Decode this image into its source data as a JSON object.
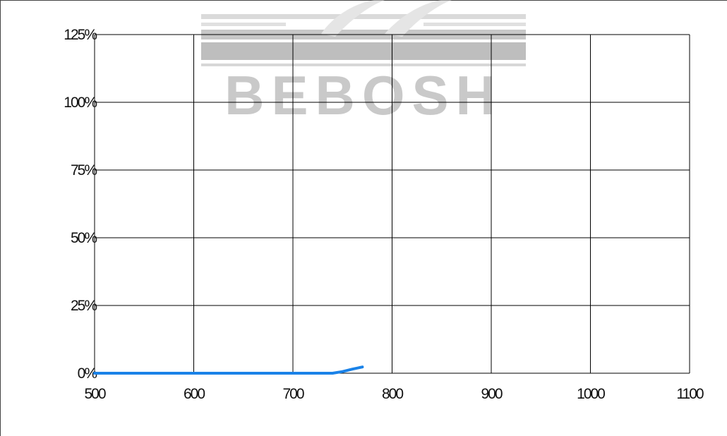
{
  "chart_data": {
    "type": "line",
    "title": "",
    "xlabel": "",
    "ylabel": "",
    "xlim": [
      500,
      1100
    ],
    "ylim": [
      0,
      125
    ],
    "x_ticks": [
      500,
      600,
      700,
      800,
      900,
      1000,
      1100
    ],
    "x_tick_labels": [
      "500",
      "600",
      "700",
      "800",
      "900",
      "1000",
      "1100"
    ],
    "y_ticks": [
      0,
      25,
      50,
      75,
      100,
      125
    ],
    "y_tick_labels": [
      "0%",
      "25%",
      "50%",
      "75%",
      "100%",
      "125%"
    ],
    "grid": true,
    "legend": "none",
    "series": [
      {
        "color": "#1a82e8",
        "x": [
          500,
          550,
          600,
          650,
          700,
          740,
          750,
          760,
          770
        ],
        "y": [
          0,
          0,
          0,
          0,
          0,
          0,
          0.6,
          1.5,
          2.3
        ]
      }
    ]
  },
  "watermark": {
    "text": "BEBOSH"
  }
}
